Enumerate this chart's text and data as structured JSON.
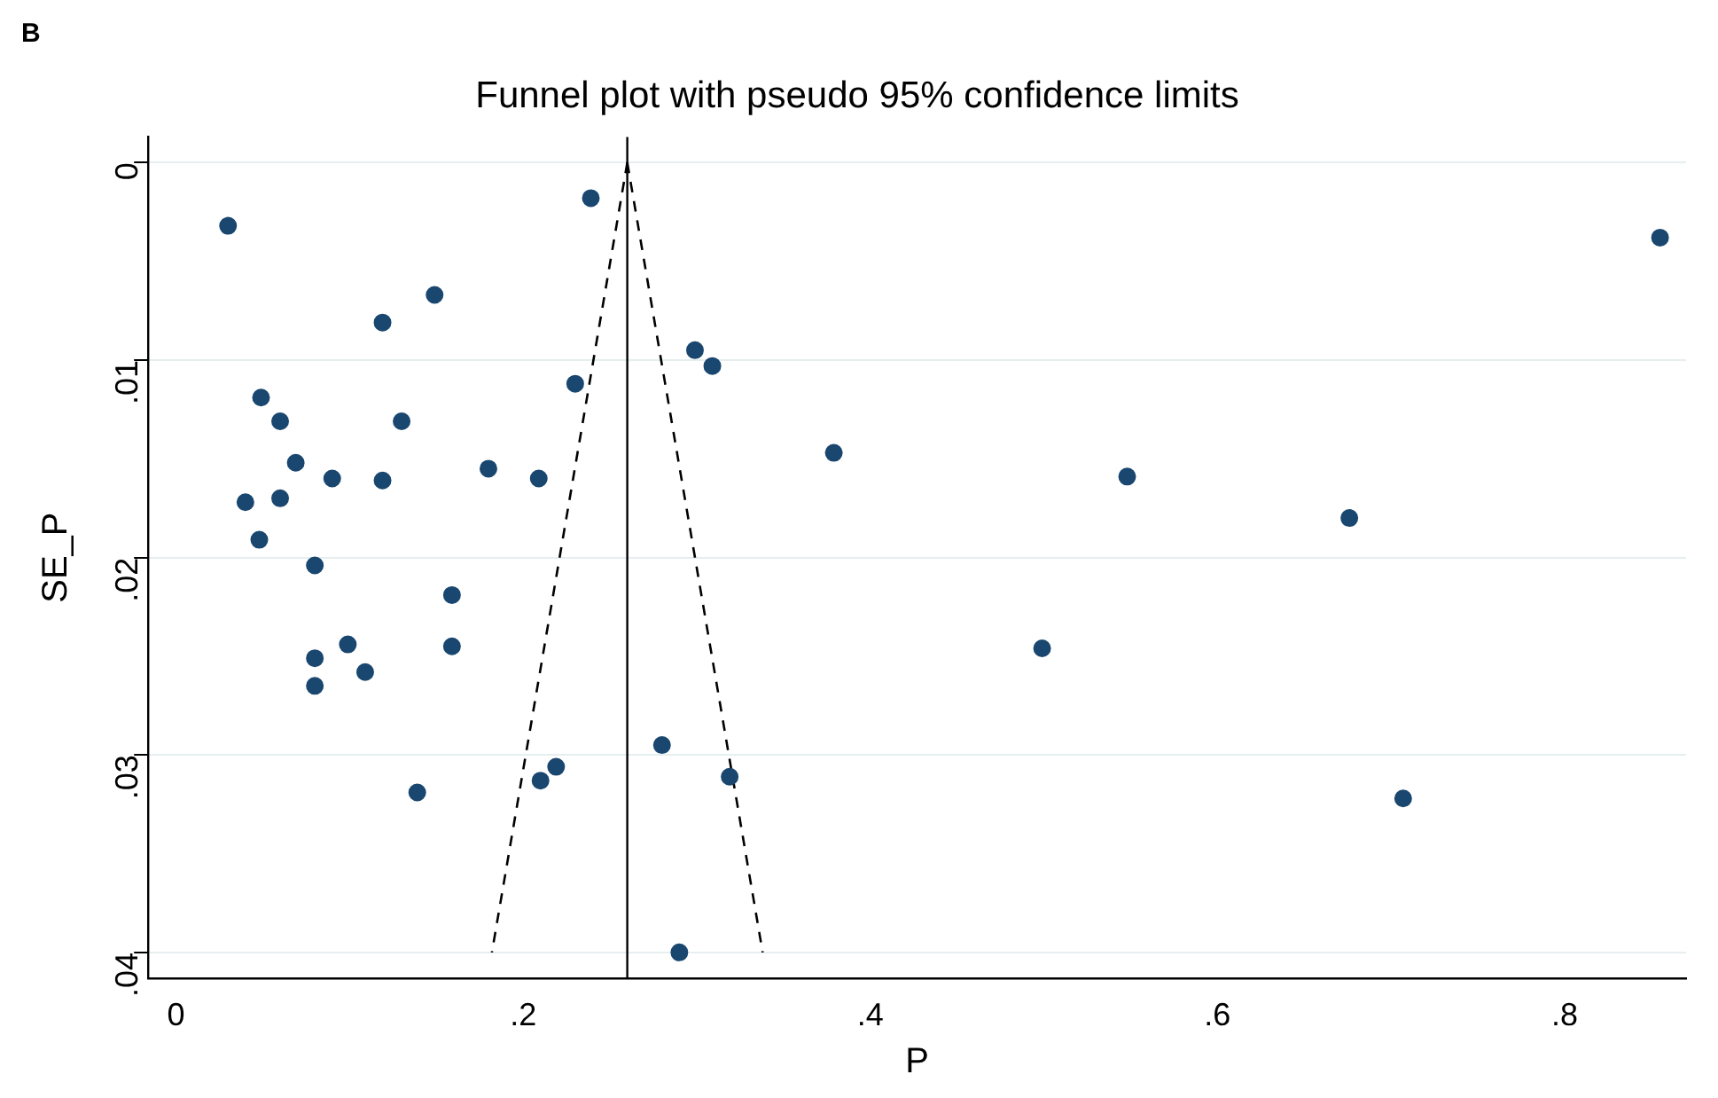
{
  "chart_data": {
    "type": "scatter",
    "title": "Funnel plot with pseudo 95% confidence limits",
    "xlabel": "P",
    "ylabel": "SE_P",
    "annotations": [
      "B"
    ],
    "xlim": [
      -0.016,
      0.87
    ],
    "ylim": [
      0.0413,
      -0.0013
    ],
    "xticks": [
      {
        "value": 0,
        "label": "0"
      },
      {
        "value": 0.2,
        "label": ".2"
      },
      {
        "value": 0.4,
        "label": ".4"
      },
      {
        "value": 0.6,
        "label": ".6"
      },
      {
        "value": 0.8,
        "label": ".8"
      }
    ],
    "yticks": [
      {
        "value": 0,
        "label": "0"
      },
      {
        "value": 0.01,
        "label": ".01"
      },
      {
        "value": 0.02,
        "label": ".02"
      },
      {
        "value": 0.03,
        "label": ".03"
      },
      {
        "value": 0.04,
        "label": ".04"
      }
    ],
    "grid": "y",
    "legend": false,
    "marker": "circle",
    "ref_lines": [
      {
        "axis": "x",
        "value": 0.26,
        "color": "#000000",
        "line_style": "solid"
      }
    ],
    "series": [
      {
        "type": "scatter",
        "color": "#1a476f",
        "x": [
          0.03,
          0.239,
          0.149,
          0.119,
          0.299,
          0.309,
          0.23,
          0.049,
          0.06,
          0.13,
          0.069,
          0.18,
          0.209,
          0.09,
          0.119,
          0.04,
          0.06,
          0.048,
          0.08,
          0.159,
          0.159,
          0.099,
          0.08,
          0.109,
          0.08,
          0.28,
          0.219,
          0.21,
          0.319,
          0.139,
          0.29,
          0.855,
          0.379,
          0.548,
          0.676,
          0.499,
          0.707
        ],
        "values": [
          0.0032,
          0.0018,
          0.0067,
          0.0081,
          0.0095,
          0.0103,
          0.0112,
          0.0119,
          0.0131,
          0.0131,
          0.0152,
          0.0155,
          0.016,
          0.016,
          0.0161,
          0.0172,
          0.017,
          0.0191,
          0.0204,
          0.0219,
          0.0245,
          0.0244,
          0.0251,
          0.0258,
          0.0265,
          0.0295,
          0.0306,
          0.0313,
          0.0311,
          0.0319,
          0.04,
          0.0038,
          0.0147,
          0.0159,
          0.018,
          0.0246,
          0.0322
        ]
      },
      {
        "type": "line",
        "color": "#000000",
        "line_style": "dashed",
        "marker": "none",
        "x": [
          0.26,
          0.182
        ],
        "values": [
          0,
          0.04
        ]
      },
      {
        "type": "line",
        "color": "#000000",
        "line_style": "dashed",
        "marker": "none",
        "x": [
          0.26,
          0.338
        ],
        "values": [
          0,
          0.04
        ]
      }
    ]
  }
}
